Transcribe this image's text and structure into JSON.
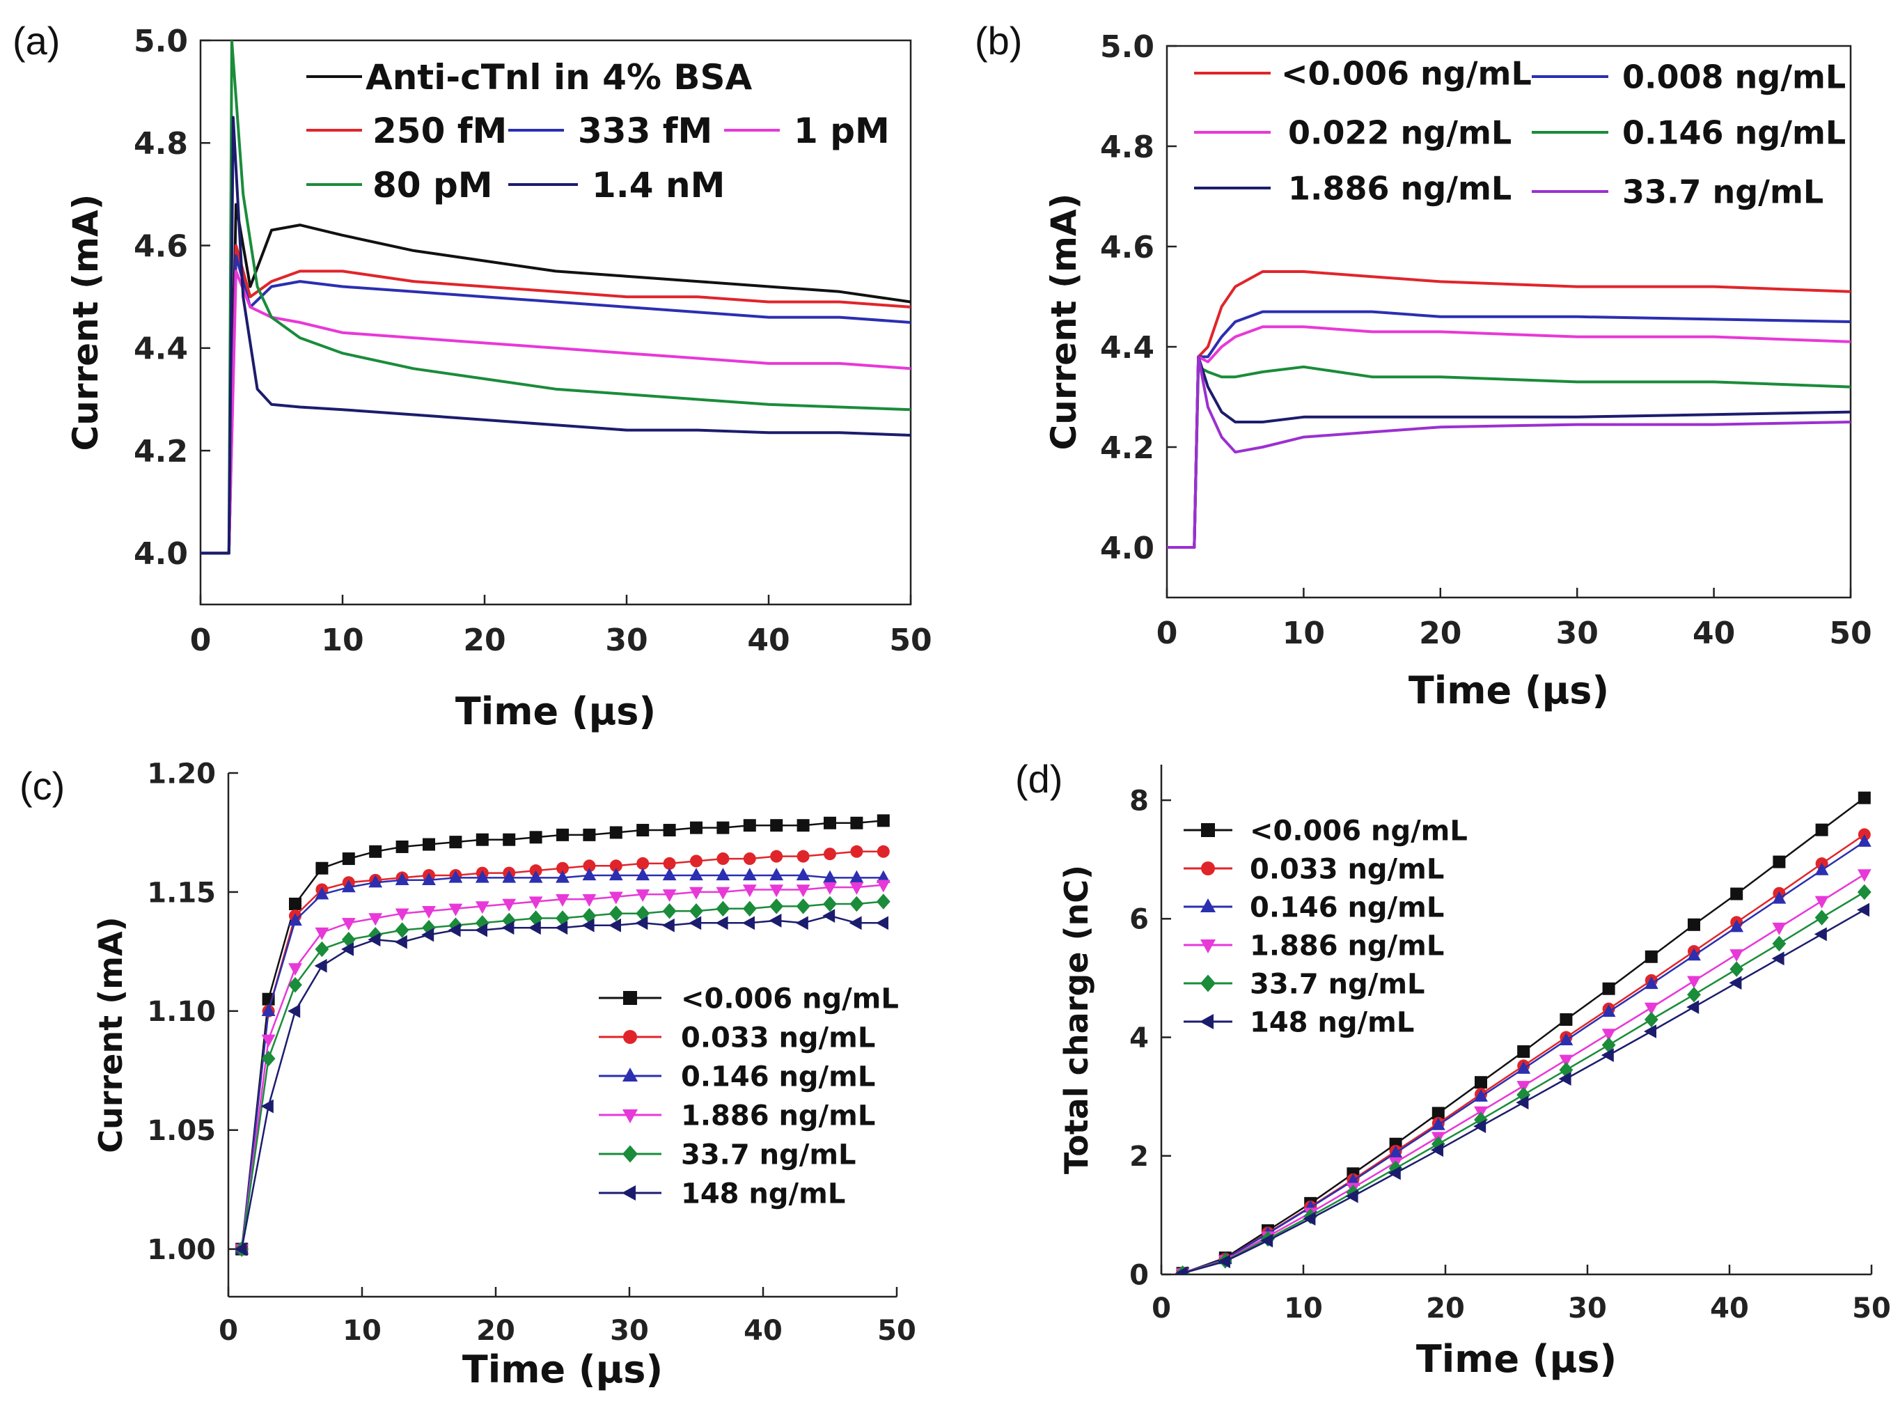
{
  "chart_data": [
    {
      "panel_label": "(a)",
      "type": "line",
      "xlabel": "Time (μs)",
      "ylabel": "Current (mA)",
      "xlim": [
        0,
        50
      ],
      "ylim": [
        3.9,
        5.0
      ],
      "xticks": [
        "0",
        "10",
        "20",
        "30",
        "40",
        "50"
      ],
      "yticks": [
        "4.0",
        "4.2",
        "4.4",
        "4.6",
        "4.8",
        "5.0"
      ],
      "series": [
        {
          "name": "Anti-cTnl in 4% BSA",
          "color": "#111111",
          "x": [
            0,
            2,
            2.5,
            3.5,
            5,
            7,
            10,
            15,
            20,
            25,
            30,
            35,
            40,
            45,
            50
          ],
          "y": [
            4.0,
            4.0,
            4.68,
            4.52,
            4.63,
            4.64,
            4.62,
            4.59,
            4.57,
            4.55,
            4.54,
            4.53,
            4.52,
            4.51,
            4.49
          ]
        },
        {
          "name": "250 fM",
          "color": "#e0252a",
          "x": [
            0,
            2,
            2.5,
            3.5,
            5,
            7,
            10,
            15,
            20,
            25,
            30,
            35,
            40,
            45,
            50
          ],
          "y": [
            4.0,
            4.0,
            4.6,
            4.5,
            4.53,
            4.55,
            4.55,
            4.53,
            4.52,
            4.51,
            4.5,
            4.5,
            4.49,
            4.49,
            4.48
          ]
        },
        {
          "name": "333 fM",
          "color": "#2b2fb0",
          "x": [
            0,
            2,
            2.5,
            3.5,
            5,
            7,
            10,
            15,
            20,
            25,
            30,
            35,
            40,
            45,
            50
          ],
          "y": [
            4.0,
            4.0,
            4.58,
            4.48,
            4.52,
            4.53,
            4.52,
            4.51,
            4.5,
            4.49,
            4.48,
            4.47,
            4.46,
            4.46,
            4.45
          ]
        },
        {
          "name": "1 pM",
          "color": "#e838d8",
          "x": [
            0,
            2,
            2.5,
            3.5,
            5,
            7,
            10,
            15,
            20,
            25,
            30,
            35,
            40,
            45,
            50
          ],
          "y": [
            4.0,
            4.0,
            4.55,
            4.48,
            4.46,
            4.45,
            4.43,
            4.42,
            4.41,
            4.4,
            4.39,
            4.38,
            4.37,
            4.37,
            4.36
          ]
        },
        {
          "name": "80 pM",
          "color": "#1a8c3a",
          "x": [
            0,
            2,
            2.2,
            3,
            4,
            5,
            7,
            10,
            15,
            20,
            25,
            30,
            35,
            40,
            45,
            50
          ],
          "y": [
            4.0,
            4.0,
            5.0,
            4.7,
            4.52,
            4.46,
            4.42,
            4.39,
            4.36,
            4.34,
            4.32,
            4.31,
            4.3,
            4.29,
            4.285,
            4.28
          ]
        },
        {
          "name": "1.4 nM",
          "color": "#1c1c6e",
          "x": [
            0,
            2,
            2.3,
            3,
            4,
            5,
            7,
            10,
            15,
            20,
            25,
            30,
            35,
            40,
            45,
            50
          ],
          "y": [
            4.0,
            4.0,
            4.85,
            4.5,
            4.32,
            4.29,
            4.285,
            4.28,
            4.27,
            4.26,
            4.25,
            4.24,
            4.24,
            4.235,
            4.235,
            4.23
          ]
        }
      ]
    },
    {
      "panel_label": "(b)",
      "type": "line",
      "xlabel": "Time (μs)",
      "ylabel": "Current (mA)",
      "xlim": [
        0,
        50
      ],
      "ylim": [
        3.9,
        5.0
      ],
      "xticks": [
        "0",
        "10",
        "20",
        "30",
        "40",
        "50"
      ],
      "yticks": [
        "4.0",
        "4.2",
        "4.4",
        "4.6",
        "4.8",
        "5.0"
      ],
      "series": [
        {
          "name": "<0.006 ng/mL",
          "color": "#e0252a",
          "x": [
            0,
            2,
            2.3,
            3,
            4,
            5,
            7,
            10,
            15,
            20,
            30,
            40,
            50
          ],
          "y": [
            4.0,
            4.0,
            4.38,
            4.4,
            4.48,
            4.52,
            4.55,
            4.55,
            4.54,
            4.53,
            4.52,
            4.52,
            4.51
          ]
        },
        {
          "name": "0.008 ng/mL",
          "color": "#2b2fb0",
          "x": [
            0,
            2,
            2.3,
            3,
            4,
            5,
            7,
            10,
            15,
            20,
            30,
            40,
            50
          ],
          "y": [
            4.0,
            4.0,
            4.38,
            4.38,
            4.42,
            4.45,
            4.47,
            4.47,
            4.47,
            4.46,
            4.46,
            4.455,
            4.45
          ]
        },
        {
          "name": "0.022 ng/mL",
          "color": "#e838d8",
          "x": [
            0,
            2,
            2.3,
            3,
            4,
            5,
            7,
            10,
            15,
            20,
            30,
            40,
            50
          ],
          "y": [
            4.0,
            4.0,
            4.38,
            4.37,
            4.4,
            4.42,
            4.44,
            4.44,
            4.43,
            4.43,
            4.42,
            4.42,
            4.41
          ]
        },
        {
          "name": "0.146 ng/mL",
          "color": "#1a8c3a",
          "x": [
            0,
            2,
            2.3,
            3,
            4,
            5,
            7,
            10,
            15,
            20,
            30,
            40,
            50
          ],
          "y": [
            4.0,
            4.0,
            4.36,
            4.35,
            4.34,
            4.34,
            4.35,
            4.36,
            4.34,
            4.34,
            4.33,
            4.33,
            4.32
          ]
        },
        {
          "name": "1.886 ng/mL",
          "color": "#1c1c6e",
          "x": [
            0,
            2,
            2.3,
            3,
            4,
            5,
            7,
            10,
            15,
            20,
            30,
            40,
            50
          ],
          "y": [
            4.0,
            4.0,
            4.38,
            4.32,
            4.27,
            4.25,
            4.25,
            4.26,
            4.26,
            4.26,
            4.26,
            4.265,
            4.27
          ]
        },
        {
          "name": "33.7 ng/mL",
          "color": "#9b30d0",
          "x": [
            0,
            2,
            2.3,
            3,
            4,
            5,
            7,
            10,
            15,
            20,
            30,
            40,
            50
          ],
          "y": [
            4.0,
            4.0,
            4.38,
            4.28,
            4.22,
            4.19,
            4.2,
            4.22,
            4.23,
            4.24,
            4.245,
            4.245,
            4.25
          ]
        }
      ]
    },
    {
      "panel_label": "(c)",
      "type": "line",
      "xlabel": "Time (μs)",
      "ylabel": "Current (mA)",
      "xlim": [
        0,
        50
      ],
      "ylim": [
        0.98,
        1.2
      ],
      "xticks": [
        "0",
        "10",
        "20",
        "30",
        "40",
        "50"
      ],
      "yticks": [
        "1.00",
        "1.05",
        "1.10",
        "1.15",
        "1.20"
      ],
      "x": [
        1,
        3,
        5,
        7,
        9,
        11,
        13,
        15,
        17,
        19,
        21,
        23,
        25,
        27,
        29,
        31,
        33,
        35,
        37,
        39,
        41,
        43,
        45,
        47,
        49
      ],
      "series": [
        {
          "name": "<0.006 ng/mL",
          "color": "#111111",
          "marker": "square",
          "values": [
            1.0,
            1.105,
            1.145,
            1.16,
            1.164,
            1.167,
            1.169,
            1.17,
            1.171,
            1.172,
            1.172,
            1.173,
            1.174,
            1.174,
            1.175,
            1.176,
            1.176,
            1.177,
            1.177,
            1.178,
            1.178,
            1.178,
            1.179,
            1.179,
            1.18
          ]
        },
        {
          "name": "0.033 ng/mL",
          "color": "#e0252a",
          "marker": "circle",
          "values": [
            1.0,
            1.1,
            1.14,
            1.151,
            1.154,
            1.155,
            1.156,
            1.157,
            1.157,
            1.158,
            1.158,
            1.159,
            1.16,
            1.161,
            1.161,
            1.162,
            1.162,
            1.163,
            1.164,
            1.164,
            1.165,
            1.165,
            1.166,
            1.167,
            1.167
          ]
        },
        {
          "name": "0.146 ng/mL",
          "color": "#2b2fb0",
          "marker": "triangle-up",
          "values": [
            1.0,
            1.1,
            1.138,
            1.149,
            1.152,
            1.154,
            1.155,
            1.155,
            1.156,
            1.156,
            1.156,
            1.156,
            1.156,
            1.157,
            1.157,
            1.157,
            1.157,
            1.157,
            1.157,
            1.157,
            1.157,
            1.157,
            1.156,
            1.156,
            1.156
          ]
        },
        {
          "name": "1.886 ng/mL",
          "color": "#e838d8",
          "marker": "triangle-down",
          "values": [
            1.0,
            1.088,
            1.118,
            1.133,
            1.137,
            1.139,
            1.141,
            1.142,
            1.143,
            1.144,
            1.145,
            1.146,
            1.147,
            1.147,
            1.148,
            1.149,
            1.149,
            1.15,
            1.15,
            1.151,
            1.151,
            1.151,
            1.152,
            1.152,
            1.153
          ]
        },
        {
          "name": "33.7 ng/mL",
          "color": "#1a8c3a",
          "marker": "diamond",
          "values": [
            1.0,
            1.08,
            1.111,
            1.126,
            1.13,
            1.132,
            1.134,
            1.135,
            1.136,
            1.137,
            1.138,
            1.139,
            1.139,
            1.14,
            1.141,
            1.141,
            1.142,
            1.142,
            1.143,
            1.143,
            1.144,
            1.144,
            1.145,
            1.145,
            1.146
          ]
        },
        {
          "name": "148 ng/mL",
          "color": "#1c1c6e",
          "marker": "triangle-left",
          "values": [
            1.0,
            1.06,
            1.1,
            1.119,
            1.126,
            1.13,
            1.129,
            1.132,
            1.134,
            1.134,
            1.135,
            1.135,
            1.135,
            1.136,
            1.136,
            1.137,
            1.136,
            1.137,
            1.137,
            1.137,
            1.138,
            1.137,
            1.14,
            1.137,
            1.137
          ]
        }
      ]
    },
    {
      "panel_label": "(d)",
      "type": "line",
      "xlabel": "Time (μs)",
      "ylabel": "Total charge (nC)",
      "xlim": [
        0,
        50
      ],
      "ylim": [
        0,
        8.6
      ],
      "xticks": [
        "0",
        "10",
        "20",
        "30",
        "40",
        "50"
      ],
      "yticks": [
        "0",
        "2",
        "4",
        "6",
        "8"
      ],
      "x": [
        1.5,
        4.5,
        7.5,
        10.5,
        13.5,
        16.5,
        19.5,
        22.5,
        25.5,
        28.5,
        31.5,
        34.5,
        37.5,
        40.5,
        43.5,
        46.5,
        49.5
      ],
      "series": [
        {
          "name": "<0.006 ng/mL",
          "color": "#111111",
          "marker": "square",
          "values": [
            0.02,
            0.28,
            0.74,
            1.2,
            1.7,
            2.2,
            2.72,
            3.24,
            3.76,
            4.3,
            4.82,
            5.36,
            5.9,
            6.42,
            6.96,
            7.5,
            8.04
          ]
        },
        {
          "name": "0.033 ng/mL",
          "color": "#e0252a",
          "marker": "circle",
          "values": [
            0.02,
            0.26,
            0.7,
            1.14,
            1.6,
            2.08,
            2.55,
            3.04,
            3.52,
            4.0,
            4.48,
            4.96,
            5.45,
            5.94,
            6.43,
            6.93,
            7.42
          ]
        },
        {
          "name": "0.146 ng/mL",
          "color": "#2b2fb0",
          "marker": "triangle-up",
          "values": [
            0.02,
            0.26,
            0.69,
            1.13,
            1.58,
            2.05,
            2.52,
            3.0,
            3.47,
            3.95,
            4.43,
            4.9,
            5.38,
            5.86,
            6.34,
            6.82,
            7.3
          ]
        },
        {
          "name": "1.886 ng/mL",
          "color": "#e838d8",
          "marker": "triangle-down",
          "values": [
            0.02,
            0.24,
            0.64,
            1.04,
            1.46,
            1.89,
            2.32,
            2.75,
            3.18,
            3.62,
            4.06,
            4.5,
            4.95,
            5.4,
            5.85,
            6.3,
            6.75
          ]
        },
        {
          "name": "33.7 ng/mL",
          "color": "#1a8c3a",
          "marker": "diamond",
          "values": [
            0.02,
            0.23,
            0.6,
            0.98,
            1.38,
            1.79,
            2.2,
            2.61,
            3.03,
            3.45,
            3.87,
            4.3,
            4.72,
            5.15,
            5.58,
            6.02,
            6.45
          ]
        },
        {
          "name": "148 ng/mL",
          "color": "#1c1c6e",
          "marker": "triangle-left",
          "values": [
            0.02,
            0.22,
            0.57,
            0.94,
            1.32,
            1.71,
            2.1,
            2.5,
            2.9,
            3.3,
            3.7,
            4.1,
            4.51,
            4.92,
            5.33,
            5.74,
            6.15
          ]
        }
      ]
    }
  ]
}
